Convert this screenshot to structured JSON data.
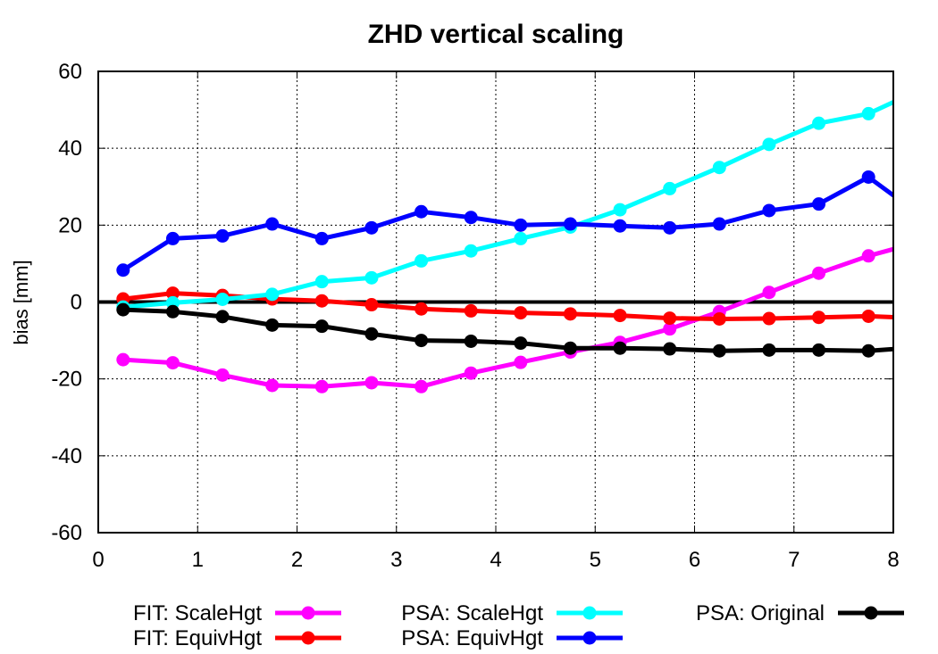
{
  "chart_data": {
    "type": "line",
    "title": "ZHD vertical scaling",
    "xlabel": "",
    "ylabel": "bias [mm]",
    "xlim": [
      0,
      8
    ],
    "ylim": [
      -60,
      60
    ],
    "xticks": [
      "0",
      "1",
      "2",
      "3",
      "4",
      "5",
      "6",
      "7",
      "8"
    ],
    "yticks": [
      "60",
      "40",
      "20",
      "0",
      "-20",
      "-40",
      "-60"
    ],
    "grid": true,
    "zero_line": true,
    "legend_position": "bottom",
    "x": [
      0.25,
      0.75,
      1.25,
      1.75,
      2.25,
      2.75,
      3.25,
      3.75,
      4.25,
      4.75,
      5.25,
      5.75,
      6.25,
      6.75,
      7.25,
      7.75,
      8.25
    ],
    "series": [
      {
        "name": "FIT: ScaleHgt",
        "color": "#ff00ff",
        "values": [
          -15,
          -15.8,
          -19,
          -21.7,
          -22,
          -21,
          -22,
          -18.5,
          -15.7,
          -13,
          -10.5,
          -7,
          -2.5,
          2.5,
          7.5,
          12,
          15.5
        ]
      },
      {
        "name": "FIT: EquivHgt",
        "color": "#ff0000",
        "values": [
          0.8,
          2.3,
          1.7,
          0.8,
          0.3,
          -0.7,
          -1.8,
          -2.3,
          -2.8,
          -3.1,
          -3.5,
          -4.2,
          -4.4,
          -4.3,
          -4,
          -3.7,
          -4.2
        ]
      },
      {
        "name": "PSA: ScaleHgt",
        "color": "#00ffff",
        "values": [
          -1.3,
          -0.2,
          0.7,
          2,
          5.3,
          6.3,
          10.7,
          13.3,
          16.5,
          19.5,
          24,
          29.5,
          35,
          41,
          46.5,
          49,
          55
        ]
      },
      {
        "name": "PSA: EquivHgt",
        "color": "#0000ff",
        "values": [
          8.3,
          16.5,
          17.2,
          20.3,
          16.5,
          19.3,
          23.5,
          22,
          20,
          20.3,
          19.8,
          19.3,
          20.3,
          23.8,
          25.5,
          32.5,
          23
        ]
      },
      {
        "name": "PSA: Original",
        "color": "#000000",
        "values": [
          -2,
          -2.5,
          -3.8,
          -6,
          -6.3,
          -8.3,
          -10,
          -10.2,
          -10.7,
          -12,
          -12,
          -12.2,
          -12.7,
          -12.5,
          -12.5,
          -12.7,
          -11.8
        ]
      }
    ]
  }
}
